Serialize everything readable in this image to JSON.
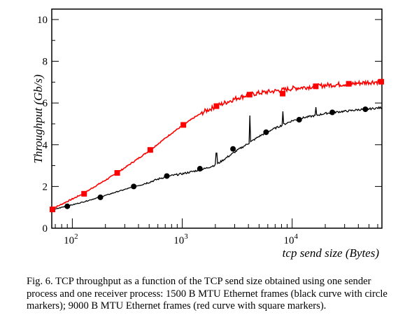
{
  "caption": "Fig. 6.   TCP throughput as a function of the TCP send size obtained using one sender process and one receiver process: 1500 B MTU Ethernet frames (black curve with circle markers); 9000 B MTU Ethernet frames (red curve with square markers).",
  "chart_data": {
    "type": "line",
    "title": "",
    "xlabel": "tcp send size (Bytes)",
    "ylabel": "Throughput (Gb/s)",
    "x_scale": "log",
    "xlim": [
      65,
      65536
    ],
    "ylim": [
      0,
      10.5
    ],
    "y_ticks": [
      {
        "value": 0,
        "label": "0"
      },
      {
        "value": 2,
        "label": "2"
      },
      {
        "value": 4,
        "label": "4"
      },
      {
        "value": 6,
        "label": "6"
      },
      {
        "value": 8,
        "label": "8"
      },
      {
        "value": 10,
        "label": "10"
      }
    ],
    "x_ticks": [
      {
        "value": 100,
        "base": "10",
        "exp": "2"
      },
      {
        "value": 1000,
        "base": "10",
        "exp": "3"
      },
      {
        "value": 10000,
        "base": "10",
        "exp": "4"
      }
    ],
    "grid": false,
    "series": [
      {
        "color": "#ff0000",
        "marker": "square",
        "x": [
          64,
          80,
          100,
          128,
          160,
          200,
          256,
          320,
          400,
          512,
          640,
          800,
          1024,
          1280,
          1600,
          2048,
          2560,
          3200,
          4096,
          5000,
          6400,
          8192,
          10000,
          12800,
          16384,
          20000,
          25600,
          32768,
          40000,
          51200,
          65536
        ],
        "y": [
          0.9,
          1.15,
          1.4,
          1.68,
          2.0,
          2.3,
          2.65,
          3.0,
          3.35,
          3.75,
          4.15,
          4.55,
          4.95,
          5.3,
          5.6,
          5.85,
          6.05,
          6.25,
          6.4,
          6.48,
          6.55,
          6.62,
          6.7,
          6.75,
          6.8,
          6.85,
          6.88,
          6.92,
          6.95,
          7.0,
          7.02
        ],
        "markers_x": [
          64,
          128,
          256,
          512,
          1024,
          2048,
          4096,
          8192,
          16384,
          32768,
          65536
        ],
        "markers_y": [
          0.9,
          1.65,
          2.65,
          3.75,
          4.95,
          5.85,
          6.4,
          6.45,
          6.8,
          6.92,
          7.02
        ]
      },
      {
        "color": "#000000",
        "marker": "circle",
        "x": [
          64,
          80,
          100,
          128,
          160,
          200,
          256,
          320,
          400,
          512,
          640,
          800,
          1024,
          1280,
          1600,
          2048,
          2560,
          3200,
          4096,
          5000,
          6400,
          8192,
          10000,
          12800,
          16384,
          20000,
          25600,
          32768,
          40000,
          51200,
          65536
        ],
        "y": [
          0.85,
          1.0,
          1.12,
          1.27,
          1.42,
          1.57,
          1.75,
          1.9,
          2.05,
          2.22,
          2.4,
          2.52,
          2.62,
          2.73,
          2.85,
          3.05,
          3.4,
          3.75,
          4.1,
          4.4,
          4.7,
          4.95,
          5.15,
          5.3,
          5.4,
          5.5,
          5.57,
          5.62,
          5.68,
          5.72,
          5.78
        ],
        "spikes_x": [
          2048,
          4096,
          8192,
          16384
        ],
        "spikes_y": [
          3.6,
          5.4,
          5.6,
          5.8
        ],
        "markers_x": [
          90,
          180,
          362,
          724,
          1448,
          2896,
          5792,
          11585,
          23170,
          46341
        ],
        "markers_y": [
          1.05,
          1.48,
          2.0,
          2.5,
          2.85,
          3.8,
          4.6,
          5.2,
          5.55,
          5.7
        ]
      }
    ]
  }
}
